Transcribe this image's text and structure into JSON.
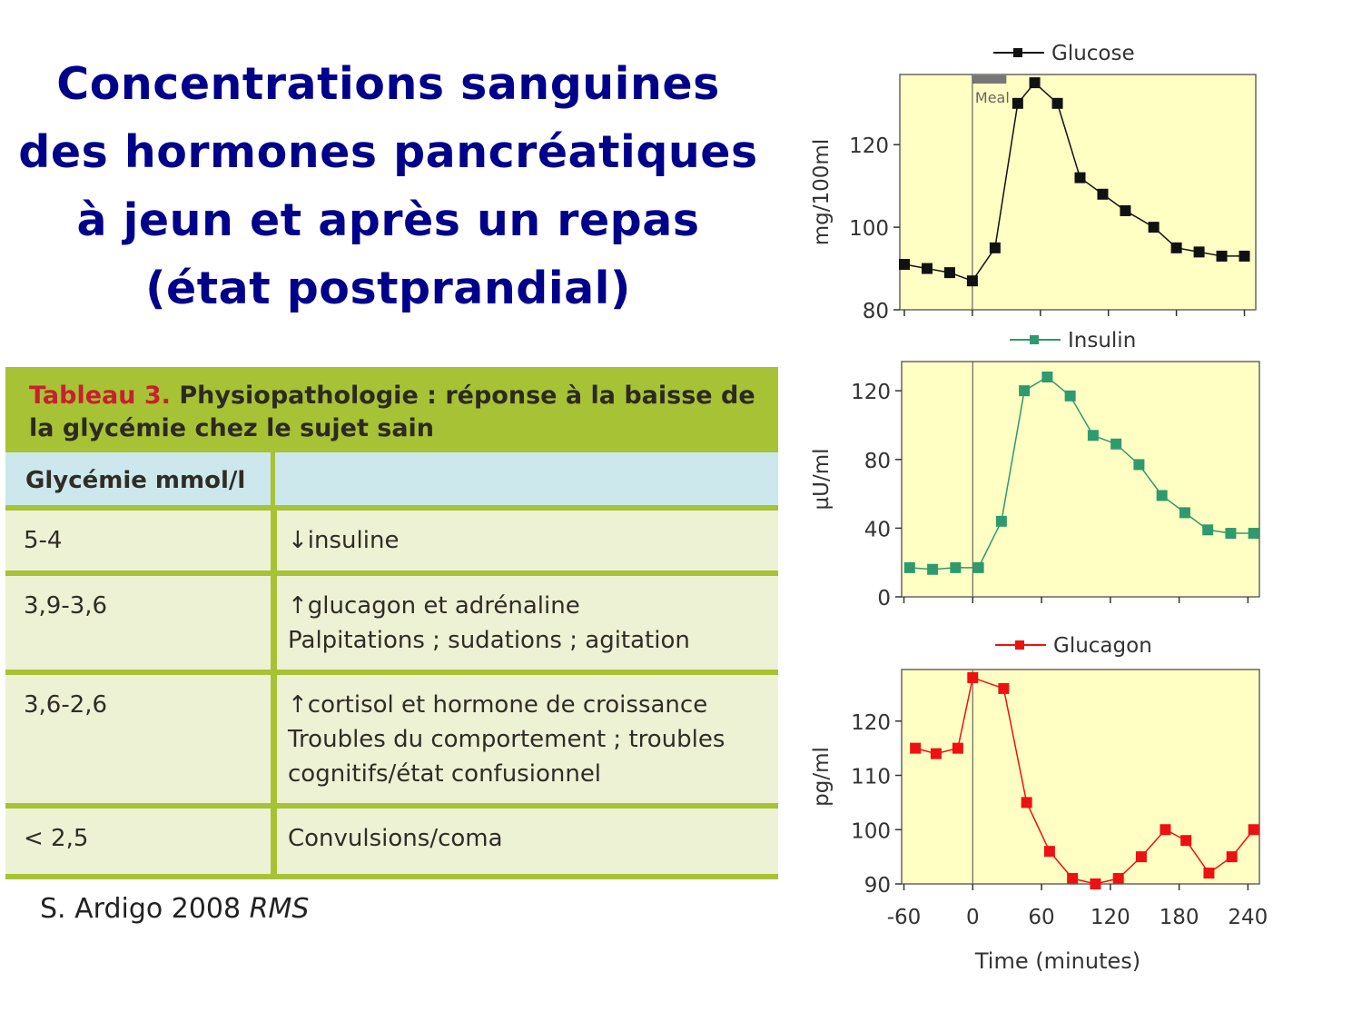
{
  "slide": {
    "title_lines": [
      "Concentrations sanguines",
      "des hormones pancréatiques",
      "à jeun et après un repas",
      "(état postprandial)"
    ],
    "source_text": "S. Ardigo 2008",
    "source_journal": "RMS"
  },
  "table": {
    "caption_label": "Tableau 3.",
    "caption_line1": "Physiopathologie : réponse à la baisse de",
    "caption_line2": "la glycémie chez le sujet sain",
    "header_col1": "Glycémie mmol/l",
    "header_col2": "",
    "rows": [
      {
        "range": "5-4",
        "lines": [
          "↓insuline"
        ]
      },
      {
        "range": "3,9-3,6",
        "lines": [
          "↑glucagon et adrénaline",
          "Palpitations ; sudations ; agitation"
        ]
      },
      {
        "range": "3,6-2,6",
        "lines": [
          "↑cortisol et hormone de croissance",
          "Troubles du comportement ; troubles",
          "cognitifs/état confusionnel"
        ]
      },
      {
        "range": "< 2,5",
        "lines": [
          "Convulsions/coma"
        ]
      }
    ],
    "colors": {
      "accent": "#a8c235",
      "header_bg": "#cce8ec",
      "row_bg": "#eef2d4",
      "label_red": "#c8202e"
    }
  },
  "chart_data": [
    {
      "type": "line",
      "legend": "Glucose",
      "ylabel": "mg/100ml",
      "annotation": "Meal",
      "meal_range": [
        0,
        30
      ],
      "color": "#111111",
      "x": [
        -60,
        -40,
        -20,
        0,
        20,
        40,
        55,
        75,
        95,
        115,
        135,
        160,
        180,
        200,
        220,
        240
      ],
      "y": [
        91,
        90,
        89,
        87,
        95,
        130,
        135,
        130,
        112,
        108,
        104,
        100,
        95,
        94,
        93,
        93
      ],
      "xlim": [
        -64,
        250
      ],
      "ylim": [
        80,
        137
      ],
      "yticks": [
        80,
        100,
        120
      ],
      "xticks": [
        -60,
        0,
        60,
        120,
        180,
        240
      ]
    },
    {
      "type": "line",
      "legend": "Insulin",
      "ylabel": "µU/ml",
      "color": "#2e9a6e",
      "x": [
        -55,
        -35,
        -15,
        5,
        25,
        45,
        65,
        85,
        105,
        125,
        145,
        165,
        185,
        205,
        225,
        245
      ],
      "y": [
        17,
        16,
        17,
        17,
        44,
        120,
        128,
        117,
        94,
        89,
        77,
        59,
        49,
        39,
        37,
        37
      ],
      "xlim": [
        -62,
        250
      ],
      "ylim": [
        0,
        137
      ],
      "yticks": [
        0,
        40,
        80,
        120
      ],
      "xticks": [
        -60,
        0,
        60,
        120,
        180,
        240
      ]
    },
    {
      "type": "line",
      "legend": "Glucagon",
      "ylabel": "pg/ml",
      "xlabel": "Time (minutes)",
      "color": "#ee1111",
      "x": [
        -50,
        -32,
        -13,
        0,
        27,
        47,
        67,
        87,
        107,
        127,
        147,
        168,
        186,
        206,
        226,
        245
      ],
      "y": [
        115,
        114,
        115,
        128,
        126,
        105,
        96,
        91,
        90,
        91,
        95,
        100,
        98,
        92,
        95,
        100
      ],
      "xlim": [
        -62,
        250
      ],
      "ylim": [
        90,
        129.5
      ],
      "yticks": [
        90,
        100,
        110,
        120
      ],
      "xticks": [
        -60,
        0,
        60,
        120,
        180,
        240
      ],
      "xticklabels": [
        "-60",
        "0",
        "60",
        "120",
        "180",
        "240"
      ]
    }
  ]
}
